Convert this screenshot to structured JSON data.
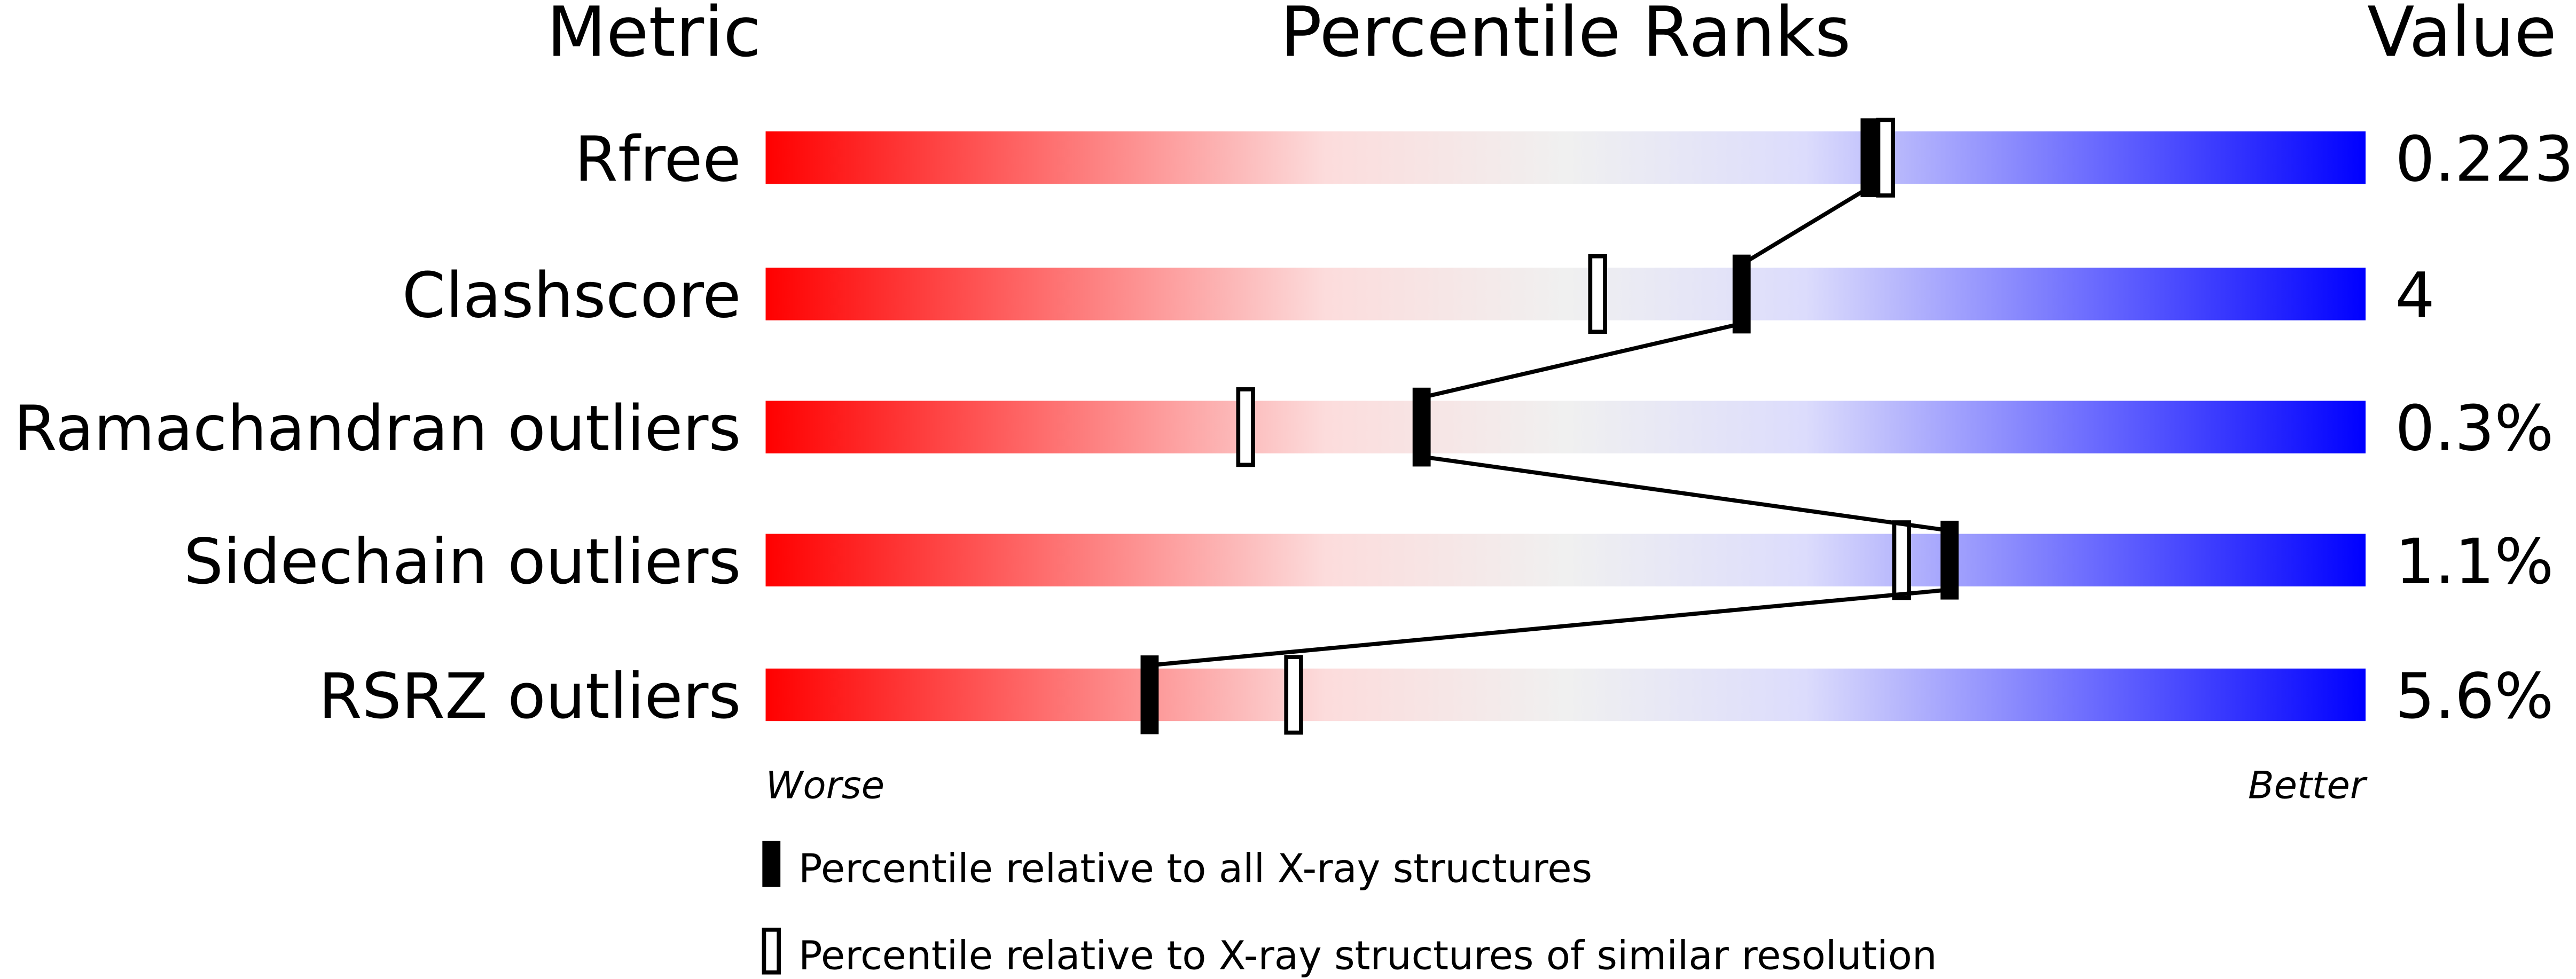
{
  "chart_data": {
    "type": "percentile-bar",
    "headers": {
      "metric": "Metric",
      "ranks": "Percentile Ranks",
      "value": "Value"
    },
    "xlim": [
      0,
      100
    ],
    "axis_labels": {
      "left": "Worse",
      "right": "Better"
    },
    "gradient_colors": [
      "#ff0000",
      "#fcdcdc",
      "#f0f0f0",
      "#dcdcfc",
      "#0000ff"
    ],
    "metrics": [
      {
        "name": "Rfree",
        "value": "0.223",
        "percentile_all": 69,
        "percentile_similar": 70
      },
      {
        "name": "Clashscore",
        "value": "4",
        "percentile_all": 61,
        "percentile_similar": 52
      },
      {
        "name": "Ramachandran outliers",
        "value": "0.3%",
        "percentile_all": 41,
        "percentile_similar": 30
      },
      {
        "name": "Sidechain outliers",
        "value": "1.1%",
        "percentile_all": 74,
        "percentile_similar": 71
      },
      {
        "name": "RSRZ outliers",
        "value": "5.6%",
        "percentile_all": 24,
        "percentile_similar": 33
      }
    ],
    "legend": [
      {
        "marker": "filled",
        "label": "Percentile relative to all X-ray structures"
      },
      {
        "marker": "open",
        "label": "Percentile relative to X-ray structures of similar resolution"
      }
    ]
  }
}
